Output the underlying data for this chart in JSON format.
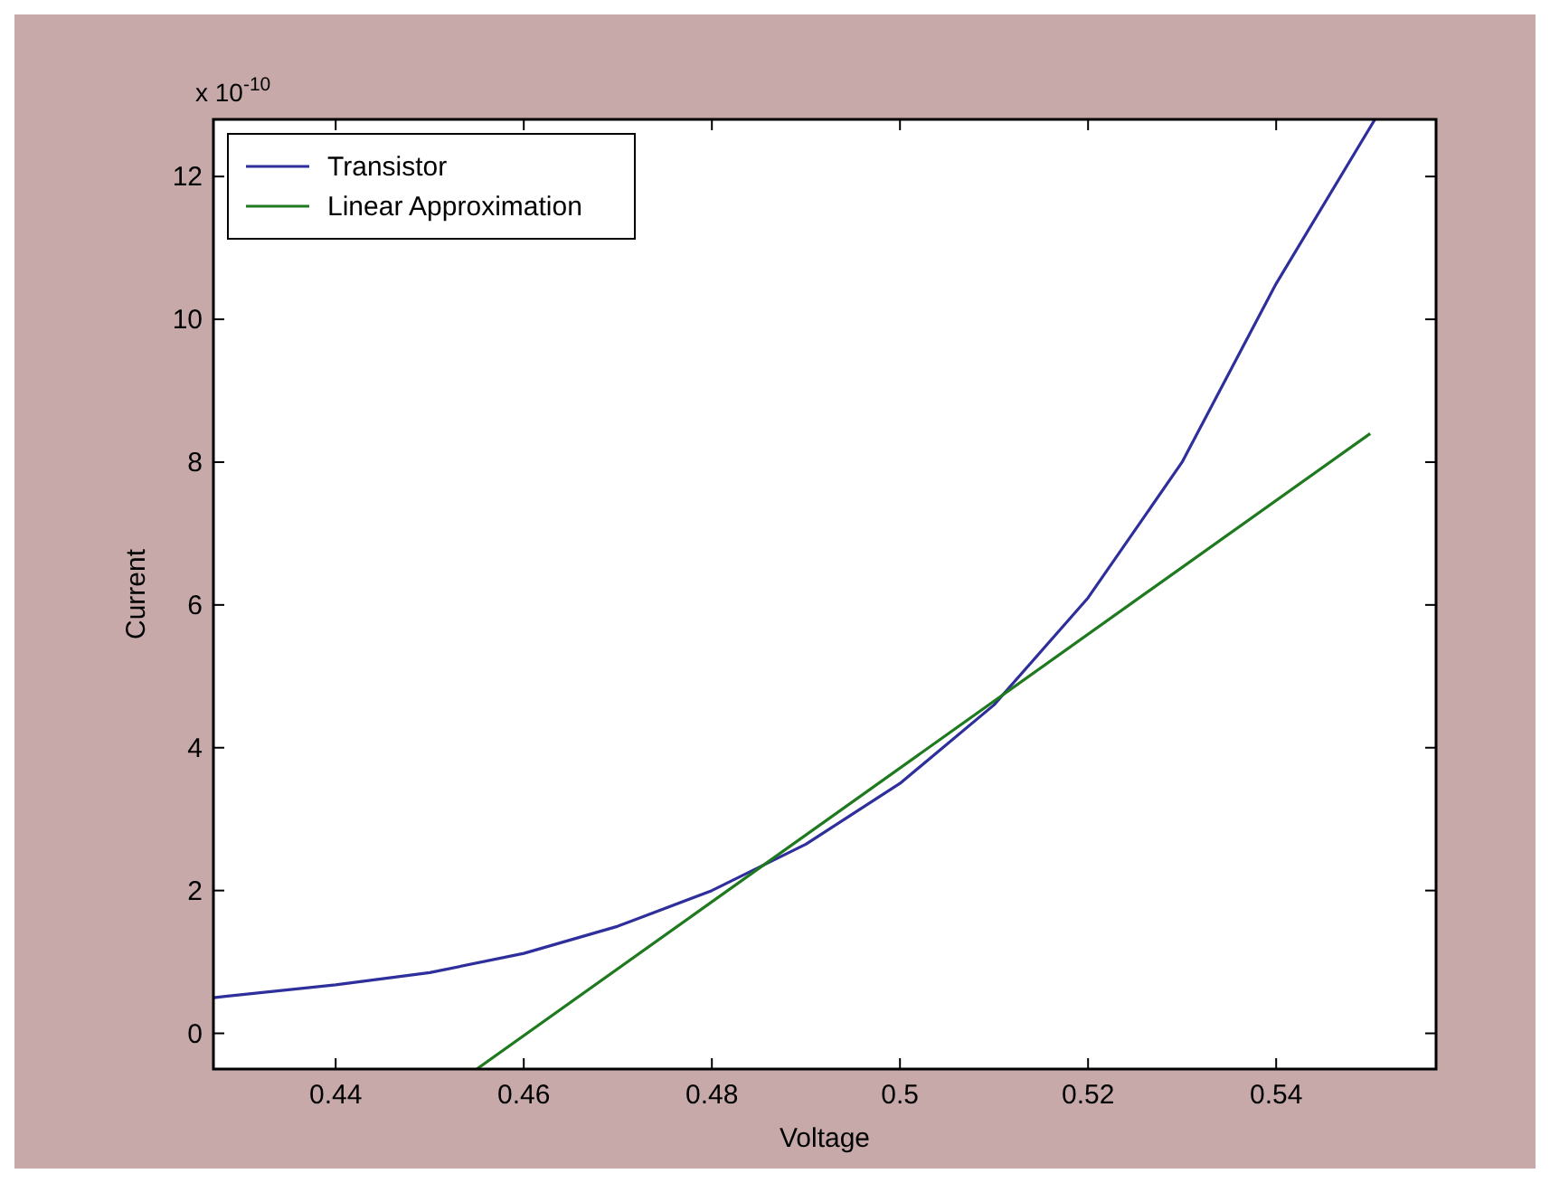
{
  "chart_data": {
    "type": "line",
    "xlabel": "Voltage",
    "ylabel": "Current",
    "annotations": [
      "x 10$^{-10}$"
    ],
    "xlim": [
      0.427,
      0.557
    ],
    "ylim": [
      -0.5,
      12.8
    ],
    "xticks": [
      0.44,
      0.46,
      0.48,
      0.5,
      0.52,
      0.54
    ],
    "yticks": [
      0,
      2,
      4,
      6,
      8,
      10,
      12
    ],
    "legend": "top left",
    "grid": false,
    "series": [
      {
        "name": "Transistor",
        "color": "#2e2e9c",
        "x": [
          0.427,
          0.44,
          0.45,
          0.46,
          0.47,
          0.48,
          0.49,
          0.5,
          0.51,
          0.52,
          0.53,
          0.54,
          0.5505
        ],
        "values": [
          0.5,
          0.68,
          0.85,
          1.12,
          1.5,
          2.0,
          2.65,
          3.5,
          4.6,
          6.1,
          8.0,
          10.5,
          12.8
        ]
      },
      {
        "name": "Linear Approximation",
        "color": "#1f7a1f",
        "x": [
          0.455,
          0.55
        ],
        "values": [
          -0.5,
          8.4
        ]
      }
    ]
  }
}
